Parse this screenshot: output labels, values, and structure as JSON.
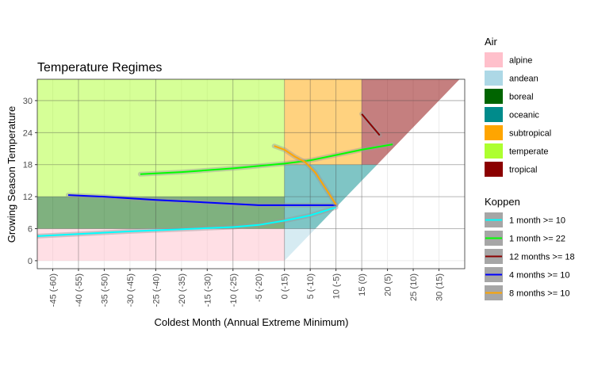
{
  "chart_data": {
    "type": "line",
    "title": "Temperature Regimes",
    "xlabel": "Coldest Month (Annual Extreme Minimum)",
    "ylabel": "Growing Season Temperature",
    "xlim": [
      -48,
      35
    ],
    "ylim": [
      -1.5,
      34
    ],
    "x_ticks": [
      {
        "value": -45,
        "label": "-45 (-60)"
      },
      {
        "value": -40,
        "label": "-40 (-55)"
      },
      {
        "value": -35,
        "label": "-35 (-50)"
      },
      {
        "value": -30,
        "label": "-30 (-45)"
      },
      {
        "value": -25,
        "label": "-25 (-40)"
      },
      {
        "value": -20,
        "label": "-20 (-35)"
      },
      {
        "value": -15,
        "label": "-15 (-30)"
      },
      {
        "value": -10,
        "label": "-10 (-25)"
      },
      {
        "value": -5,
        "label": "-5 (-20)"
      },
      {
        "value": 0,
        "label": "0 (-15)"
      },
      {
        "value": 5,
        "label": "5 (-10)"
      },
      {
        "value": 10,
        "label": "10 (-5)"
      },
      {
        "value": 15,
        "label": "15 (0)"
      },
      {
        "value": 20,
        "label": "20 (5)"
      },
      {
        "value": 25,
        "label": "25 (10)"
      },
      {
        "value": 30,
        "label": "30 (15)"
      }
    ],
    "y_ticks": [
      {
        "value": 0,
        "label": "0"
      },
      {
        "value": 6,
        "label": "6"
      },
      {
        "value": 12,
        "label": "12"
      },
      {
        "value": 18,
        "label": "18"
      },
      {
        "value": 24,
        "label": "24"
      },
      {
        "value": 30,
        "label": "30"
      }
    ],
    "grid": true,
    "regions": [
      {
        "name": "temperate",
        "color": "#adff2f",
        "opacity": 0.5,
        "points": [
          [
            -48,
            34
          ],
          [
            0,
            34
          ],
          [
            0,
            12
          ],
          [
            -48,
            12
          ]
        ]
      },
      {
        "name": "alpine",
        "color": "#ffc0cb",
        "opacity": 0.5,
        "points": [
          [
            -48,
            6
          ],
          [
            0,
            6
          ],
          [
            0,
            0
          ],
          [
            -48,
            0
          ]
        ]
      },
      {
        "name": "boreal",
        "color": "#006400",
        "opacity": 0.5,
        "points": [
          [
            -48,
            12
          ],
          [
            0,
            12
          ],
          [
            0,
            6
          ],
          [
            -48,
            6
          ]
        ]
      },
      {
        "name": "andean",
        "color": "#add8e6",
        "opacity": 0.5,
        "points": [
          [
            0,
            0
          ],
          [
            0,
            6
          ],
          [
            6,
            6
          ]
        ]
      },
      {
        "name": "oceanic",
        "color": "#008b8b",
        "opacity": 0.5,
        "points": [
          [
            0,
            6
          ],
          [
            0,
            18
          ],
          [
            18,
            18
          ],
          [
            6,
            6
          ]
        ]
      },
      {
        "name": "subtropical",
        "color": "#ffa500",
        "opacity": 0.5,
        "points": [
          [
            0,
            18
          ],
          [
            0,
            34
          ],
          [
            15,
            34
          ],
          [
            15,
            18
          ]
        ]
      },
      {
        "name": "tropical",
        "color": "#8b0000",
        "opacity": 0.5,
        "points": [
          [
            15,
            18
          ],
          [
            15,
            34
          ],
          [
            34,
            34
          ],
          [
            18,
            18
          ]
        ]
      }
    ],
    "ref_hlines": [
      6,
      12,
      18,
      24,
      30
    ],
    "ref_vlines": [
      -40,
      -25,
      -10,
      0,
      5,
      10,
      15
    ],
    "series": [
      {
        "name": "1 month >= 10",
        "color": "#00ffff",
        "x": [
          -48,
          -40,
          -30,
          -20,
          -10,
          -5,
          0,
          5,
          10
        ],
        "y": [
          4.6,
          5.0,
          5.5,
          5.9,
          6.3,
          6.7,
          7.5,
          8.5,
          10.0
        ]
      },
      {
        "name": "1 month >= 22",
        "color": "#00ff00",
        "x": [
          -28,
          -20,
          -10,
          0,
          5,
          10,
          15,
          21
        ],
        "y": [
          16.2,
          16.6,
          17.3,
          18.2,
          18.8,
          19.8,
          20.8,
          21.8
        ]
      },
      {
        "name": "12 months >= 18",
        "color": "#8b0000",
        "x": [
          15,
          18.5
        ],
        "y": [
          27.5,
          23.5
        ]
      },
      {
        "name": "4 months >= 10",
        "color": "#0000ff",
        "x": [
          -42,
          -35,
          -25,
          -15,
          -5,
          0,
          5,
          10
        ],
        "y": [
          12.3,
          12.0,
          11.4,
          10.9,
          10.4,
          10.4,
          10.4,
          10.4
        ]
      },
      {
        "name": "8 months >= 10",
        "color": "#ffa500",
        "x": [
          -2,
          0,
          2,
          4,
          6,
          8,
          10
        ],
        "y": [
          21.5,
          20.8,
          19.5,
          18.5,
          16.5,
          13.5,
          10.5
        ]
      }
    ],
    "legends": [
      {
        "title": "Air",
        "items": [
          {
            "label": "alpine",
            "color": "#ffc0cb"
          },
          {
            "label": "andean",
            "color": "#add8e6"
          },
          {
            "label": "boreal",
            "color": "#006400"
          },
          {
            "label": "oceanic",
            "color": "#008b8b"
          },
          {
            "label": "subtropical",
            "color": "#ffa500"
          },
          {
            "label": "temperate",
            "color": "#adff2f"
          },
          {
            "label": "tropical",
            "color": "#8b0000"
          }
        ]
      },
      {
        "title": "Koppen",
        "items": [
          {
            "label": "1 month >= 10",
            "color": "#00ffff"
          },
          {
            "label": "1 month >= 22",
            "color": "#00ff00"
          },
          {
            "label": "12 months >= 18",
            "color": "#8b0000"
          },
          {
            "label": "4 months >= 10",
            "color": "#0000ff"
          },
          {
            "label": "8 months >= 10",
            "color": "#ffa500"
          }
        ]
      }
    ]
  }
}
